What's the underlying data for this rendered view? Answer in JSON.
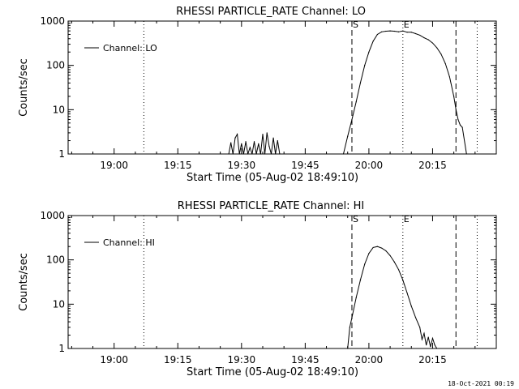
{
  "footer": {
    "timestamp": "18-Oct-2021 00:19"
  },
  "chart_data": [
    {
      "type": "line",
      "title": "RHESSI PARTICLE_RATE Channel: LO",
      "xlabel": "Start Time (05-Aug-02 18:49:10)",
      "ylabel": "Counts/sec",
      "yscale": "log",
      "ylim": [
        1,
        1000
      ],
      "xlim": [
        "18:49:10",
        "20:30:00"
      ],
      "x_ticks": [
        "19:00",
        "19:15",
        "19:30",
        "19:45",
        "20:00",
        "20:15"
      ],
      "y_ticks": [
        "1",
        "10",
        "100",
        "1000"
      ],
      "legend": {
        "position": "top-left",
        "entries": [
          "Channel: LO"
        ]
      },
      "markers": [
        {
          "time": "19:07:00",
          "style": "dotted",
          "label": ""
        },
        {
          "time": "19:56:00",
          "style": "dashed",
          "label": "S"
        },
        {
          "time": "20:08:00",
          "style": "dotted",
          "label": "E"
        },
        {
          "time": "20:20:30",
          "style": "dashed",
          "label": ""
        },
        {
          "time": "20:25:30",
          "style": "dotted",
          "label": ""
        }
      ],
      "series": [
        {
          "name": "Channel: LO",
          "x": [
            "19:27:00",
            "19:27:30",
            "19:28:00",
            "19:28:30",
            "19:29:00",
            "19:29:30",
            "19:30:00",
            "19:30:30",
            "19:31:00",
            "19:31:30",
            "19:32:00",
            "19:32:30",
            "19:33:00",
            "19:33:30",
            "19:34:00",
            "19:34:30",
            "19:35:00",
            "19:35:30",
            "19:36:00",
            "19:36:30",
            "19:37:00",
            "19:37:30",
            "19:38:00",
            "19:38:30",
            "19:39:00",
            "19:54:00",
            "19:55:00",
            "19:56:00",
            "19:57:00",
            "19:58:00",
            "19:59:00",
            "20:00:00",
            "20:01:00",
            "20:02:00",
            "20:03:00",
            "20:04:00",
            "20:05:00",
            "20:06:00",
            "20:07:00",
            "20:08:00",
            "20:09:00",
            "20:10:00",
            "20:11:00",
            "20:12:00",
            "20:13:00",
            "20:14:00",
            "20:15:00",
            "20:16:00",
            "20:17:00",
            "20:18:00",
            "20:19:00",
            "20:20:00",
            "20:20:30",
            "20:21:00",
            "20:21:30",
            "20:22:00",
            "20:23:00"
          ],
          "y": [
            1,
            1.8,
            1,
            2.3,
            2.8,
            1,
            1.7,
            1,
            1.9,
            1,
            1.4,
            1,
            1.9,
            1,
            1.7,
            1,
            2.8,
            1,
            3,
            1.5,
            1,
            2.3,
            1,
            2,
            1,
            1,
            2.5,
            6,
            15,
            40,
            100,
            200,
            350,
            500,
            570,
            590,
            600,
            590,
            570,
            600,
            560,
            560,
            520,
            480,
            420,
            380,
            320,
            250,
            180,
            110,
            55,
            20,
            10,
            6,
            4.5,
            4,
            1
          ]
        }
      ]
    },
    {
      "type": "line",
      "title": "RHESSI PARTICLE_RATE Channel: HI",
      "xlabel": "Start Time (05-Aug-02 18:49:10)",
      "ylabel": "Counts/sec",
      "yscale": "log",
      "ylim": [
        1,
        1000
      ],
      "xlim": [
        "18:49:10",
        "20:30:00"
      ],
      "x_ticks": [
        "19:00",
        "19:15",
        "19:30",
        "19:45",
        "20:00",
        "20:15"
      ],
      "y_ticks": [
        "1",
        "10",
        "100",
        "1000"
      ],
      "legend": {
        "position": "top-left",
        "entries": [
          "Channel: HI"
        ]
      },
      "markers": [
        {
          "time": "19:07:00",
          "style": "dotted",
          "label": ""
        },
        {
          "time": "19:56:00",
          "style": "dashed",
          "label": "S"
        },
        {
          "time": "20:08:00",
          "style": "dotted",
          "label": "E"
        },
        {
          "time": "20:20:30",
          "style": "dashed",
          "label": ""
        },
        {
          "time": "20:25:30",
          "style": "dotted",
          "label": ""
        }
      ],
      "series": [
        {
          "name": "Channel: HI",
          "x": [
            "19:55:00",
            "19:55:30",
            "19:56:00",
            "19:57:00",
            "19:58:00",
            "19:59:00",
            "20:00:00",
            "20:01:00",
            "20:02:00",
            "20:03:00",
            "20:04:00",
            "20:05:00",
            "20:06:00",
            "20:07:00",
            "20:08:00",
            "20:09:00",
            "20:10:00",
            "20:11:00",
            "20:12:00",
            "20:12:30",
            "20:13:00",
            "20:13:30",
            "20:14:00",
            "20:14:30",
            "20:15:00",
            "20:15:30",
            "20:16:00"
          ],
          "y": [
            1,
            3,
            5,
            14,
            35,
            80,
            140,
            190,
            200,
            185,
            160,
            125,
            90,
            60,
            35,
            18,
            9,
            5,
            3,
            1.6,
            2.2,
            1.2,
            1.8,
            1.1,
            1.7,
            1.2,
            1
          ]
        }
      ]
    }
  ]
}
